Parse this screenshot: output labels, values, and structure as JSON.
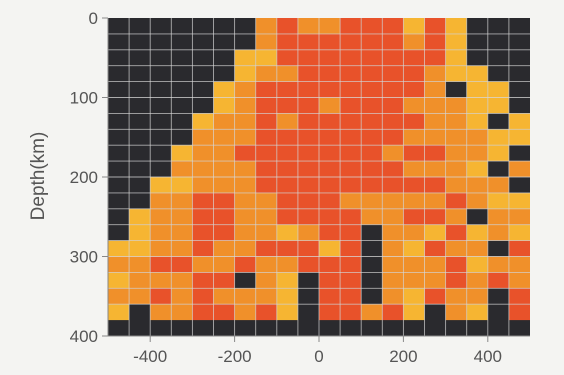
{
  "chart_data": {
    "type": "heatmap",
    "title": "",
    "xlabel": "",
    "ylabel": "Depth(km)",
    "xlim": [
      -500,
      500
    ],
    "ylim": [
      0,
      400
    ],
    "y_inverted": true,
    "grid": true,
    "cell_width": 50,
    "cell_height": 20,
    "x_ticks": [
      -400,
      -200,
      0,
      200,
      400
    ],
    "x_tick_labels": [
      "-400",
      "-200",
      "0",
      "200",
      "400"
    ],
    "y_ticks": [
      0,
      100,
      200,
      300,
      400
    ],
    "y_tick_labels": [
      "0",
      "100",
      "200",
      "300",
      "400"
    ],
    "palette": {
      "K": "#2a2a2e",
      "Y": "#f6b532",
      "O": "#f0902a",
      "R": "#e8522a",
      "D": "#e04226"
    },
    "grid_rows": [
      "KKKKKKKOROORRRYRYKKKKK",
      "KKKKKKKORRRRRRORYKKKKK",
      "KKKKKKYYRRRRRRRRYKKKKK",
      "KKKKKKYOORRRRRROYYKKKK",
      "KKKKKYORRRRRRRROKYYKKK",
      "KKKKKYORRRORRROOOYYKKK",
      "KKKKYOORORRRRRROOYKYKK",
      "KKKKOOORRRRRRROOOOYYKK",
      "KKKYOORRRRRRRORROOYKYK",
      "KKKOOOORRRRRRROOOYKOYK",
      "KKYYOOORRRRRRRRROOOKYK",
      "KKOORROORRROOOOOROYYYY",
      "KYOORROORRRROORROKOOYY",
      "KYOORROOYORRKOOYRYOYOK",
      "YYOOROORRRYRKOYROOKRYY",
      "OORROOROORRRKOOORYOOYY",
      "YOOORRKOYKRRKOOOROROYK",
      "OOROROOOYKRRKOYROOKRYO",
      "YKOORRORYKRRORYKOYKROY"
    ]
  }
}
